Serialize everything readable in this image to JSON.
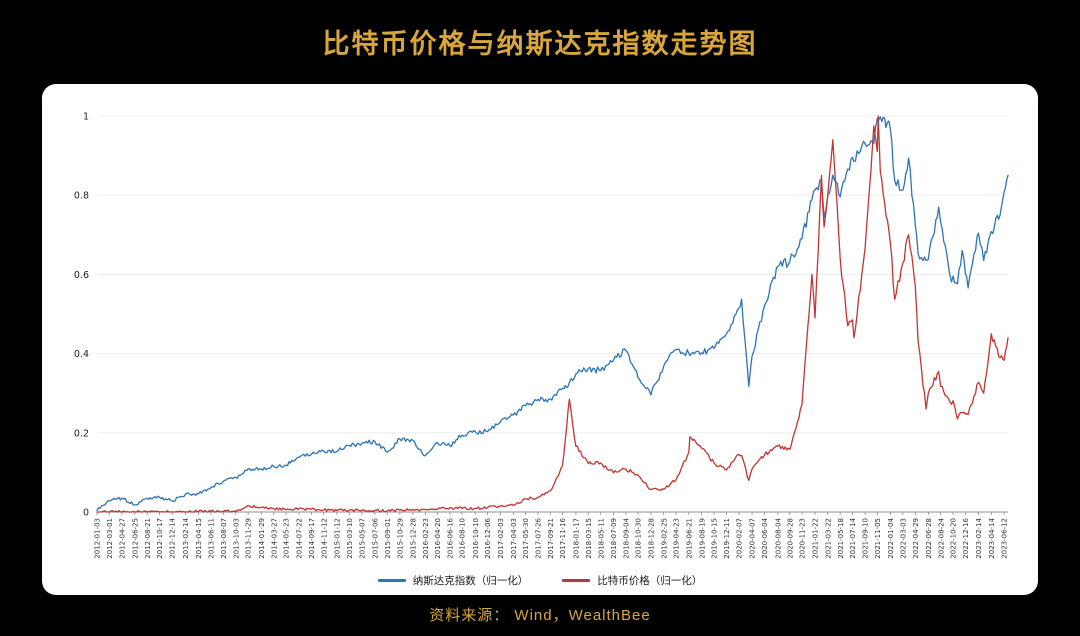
{
  "page": {
    "title": "比特币价格与纳斯达克指数走势图",
    "source_note": "资料来源： Wind，WealthBee",
    "colors": {
      "background": "#000000",
      "title_gold": "#d9a63a",
      "card": "#ffffff",
      "nasdaq_blue": "#2d74b5",
      "bitcoin_red": "#c13532"
    }
  },
  "chart_data": {
    "type": "line",
    "title": "比特币价格与纳斯达克指数走势图",
    "xlabel": "",
    "ylabel": "",
    "ylim": [
      0,
      1
    ],
    "y_ticks": [
      0,
      0.2,
      0.4,
      0.6,
      0.8,
      1
    ],
    "grid": true,
    "legend_position": "bottom",
    "x_tick_labels": [
      "2012-01-03",
      "2012-03-01",
      "2012-04-27",
      "2012-06-25",
      "2012-08-21",
      "2012-10-17",
      "2012-12-14",
      "2013-02-14",
      "2013-04-15",
      "2013-06-11",
      "2013-08-07",
      "2013-10-03",
      "2013-11-29",
      "2014-01-29",
      "2014-03-27",
      "2014-05-23",
      "2014-07-22",
      "2014-09-17",
      "2014-11-12",
      "2015-01-12",
      "2015-03-10",
      "2015-05-07",
      "2015-07-06",
      "2015-09-01",
      "2015-10-29",
      "2015-12-28",
      "2016-02-23",
      "2016-04-20",
      "2016-06-16",
      "2016-08-10",
      "2016-10-10",
      "2016-12-06",
      "2017-02-03",
      "2017-04-03",
      "2017-05-30",
      "2017-07-26",
      "2017-09-21",
      "2017-11-16",
      "2018-01-17",
      "2018-03-15",
      "2018-05-11",
      "2018-07-09",
      "2018-09-04",
      "2018-10-30",
      "2018-12-28",
      "2019-02-25",
      "2019-04-23",
      "2019-06-21",
      "2019-08-19",
      "2019-10-15",
      "2019-12-11",
      "2020-02-07",
      "2020-04-07",
      "2020-06-04",
      "2020-08-04",
      "2020-09-28",
      "2020-11-23",
      "2021-01-22",
      "2021-03-22",
      "2021-05-18",
      "2021-07-14",
      "2021-09-10",
      "2021-11-05",
      "2022-01-04",
      "2022-03-03",
      "2022-04-29",
      "2022-06-28",
      "2022-08-24",
      "2022-10-20",
      "2022-12-16",
      "2023-02-14",
      "2023-04-14",
      "2023-06-12"
    ],
    "x": [
      "2012-01-03",
      "2012-03-01",
      "2012-04-27",
      "2012-06-25",
      "2012-08-21",
      "2012-10-17",
      "2012-12-14",
      "2013-02-14",
      "2013-04-15",
      "2013-06-11",
      "2013-08-07",
      "2013-10-03",
      "2013-11-29",
      "2014-01-29",
      "2014-03-27",
      "2014-05-23",
      "2014-07-22",
      "2014-09-17",
      "2014-11-12",
      "2015-01-12",
      "2015-03-10",
      "2015-05-07",
      "2015-07-06",
      "2015-09-01",
      "2015-10-29",
      "2015-12-28",
      "2016-02-23",
      "2016-04-20",
      "2016-06-16",
      "2016-08-10",
      "2016-10-10",
      "2016-12-06",
      "2017-02-03",
      "2017-04-03",
      "2017-05-30",
      "2017-07-26",
      "2017-09-21",
      "2017-11-16",
      "2017-12-18",
      "2018-01-17",
      "2018-03-15",
      "2018-05-11",
      "2018-07-09",
      "2018-09-04",
      "2018-10-30",
      "2018-12-28",
      "2019-02-25",
      "2019-04-23",
      "2019-06-21",
      "2019-06-26",
      "2019-08-19",
      "2019-10-15",
      "2019-12-11",
      "2020-02-07",
      "2020-02-19",
      "2020-03-23",
      "2020-04-07",
      "2020-06-04",
      "2020-08-04",
      "2020-09-28",
      "2020-11-23",
      "2021-01-08",
      "2021-01-22",
      "2021-02-21",
      "2021-03-05",
      "2021-03-22",
      "2021-04-14",
      "2021-05-18",
      "2021-06-22",
      "2021-07-14",
      "2021-07-20",
      "2021-09-10",
      "2021-10-20",
      "2021-11-05",
      "2021-11-09",
      "2021-11-19",
      "2022-01-04",
      "2022-01-24",
      "2022-03-03",
      "2022-03-29",
      "2022-04-29",
      "2022-05-12",
      "2022-06-18",
      "2022-06-28",
      "2022-08-15",
      "2022-08-24",
      "2022-10-13",
      "2022-10-20",
      "2022-11-09",
      "2022-12-01",
      "2022-12-16",
      "2022-12-28",
      "2023-02-14",
      "2023-03-10",
      "2023-04-14",
      "2023-05-25",
      "2023-06-12",
      "2023-06-30"
    ],
    "series": [
      {
        "name": "纳斯达克指数（归一化）",
        "color": "#2d74b5",
        "values": [
          0.004,
          0.028,
          0.035,
          0.018,
          0.035,
          0.037,
          0.028,
          0.045,
          0.046,
          0.062,
          0.078,
          0.087,
          0.109,
          0.108,
          0.115,
          0.118,
          0.138,
          0.146,
          0.154,
          0.153,
          0.168,
          0.174,
          0.178,
          0.151,
          0.184,
          0.181,
          0.142,
          0.175,
          0.167,
          0.194,
          0.203,
          0.203,
          0.228,
          0.245,
          0.268,
          0.284,
          0.285,
          0.312,
          0.327,
          0.349,
          0.363,
          0.357,
          0.383,
          0.408,
          0.339,
          0.296,
          0.368,
          0.41,
          0.401,
          0.395,
          0.402,
          0.413,
          0.45,
          0.515,
          0.537,
          0.317,
          0.393,
          0.522,
          0.62,
          0.633,
          0.69,
          0.788,
          0.813,
          0.838,
          0.744,
          0.801,
          0.851,
          0.796,
          0.866,
          0.896,
          0.885,
          0.93,
          0.931,
          0.994,
          0.988,
          0.998,
          0.968,
          0.837,
          0.813,
          0.894,
          0.724,
          0.652,
          0.635,
          0.638,
          0.77,
          0.731,
          0.581,
          0.596,
          0.576,
          0.66,
          0.602,
          0.566,
          0.704,
          0.635,
          0.708,
          0.751,
          0.808,
          0.85
        ]
      },
      {
        "name": "比特币价格（归一化）",
        "color": "#c13532",
        "values": [
          0.0001,
          0.0001,
          0.0001,
          0.0001,
          0.0002,
          0.0002,
          0.0002,
          0.0004,
          0.0015,
          0.0016,
          0.0015,
          0.002,
          0.0167,
          0.012,
          0.0085,
          0.0065,
          0.009,
          0.007,
          0.0055,
          0.0037,
          0.0043,
          0.0035,
          0.004,
          0.0034,
          0.0046,
          0.0063,
          0.0062,
          0.0066,
          0.011,
          0.0087,
          0.0093,
          0.0112,
          0.0152,
          0.0167,
          0.0326,
          0.0377,
          0.0533,
          0.117,
          0.285,
          0.166,
          0.122,
          0.124,
          0.099,
          0.108,
          0.093,
          0.057,
          0.057,
          0.081,
          0.151,
          0.19,
          0.161,
          0.124,
          0.106,
          0.145,
          0.143,
          0.08,
          0.108,
          0.145,
          0.166,
          0.158,
          0.272,
          0.6,
          0.49,
          0.85,
          0.72,
          0.8,
          0.94,
          0.64,
          0.47,
          0.485,
          0.44,
          0.666,
          0.975,
          0.91,
          1.0,
          0.86,
          0.68,
          0.537,
          0.629,
          0.7,
          0.57,
          0.43,
          0.26,
          0.3,
          0.355,
          0.317,
          0.272,
          0.281,
          0.235,
          0.251,
          0.247,
          0.246,
          0.327,
          0.3,
          0.45,
          0.39,
          0.383,
          0.44
        ]
      }
    ]
  }
}
